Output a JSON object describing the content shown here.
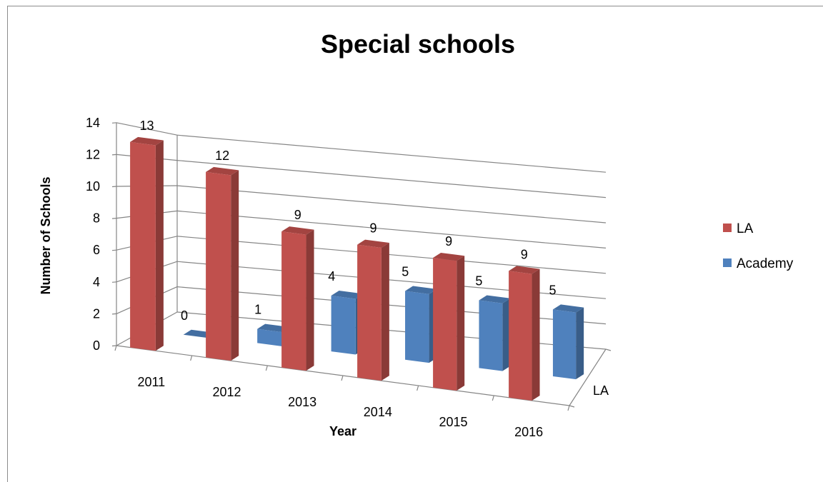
{
  "chart_data": {
    "type": "bar",
    "title": "Special schools",
    "xlabel": "Year",
    "ylabel": "Number of Schools",
    "depth_axis_label": "LA",
    "categories": [
      "2011",
      "2012",
      "2013",
      "2014",
      "2015",
      "2016"
    ],
    "ylim": [
      0,
      14
    ],
    "y_ticks": [
      0,
      2,
      4,
      6,
      8,
      10,
      12,
      14
    ],
    "grid": true,
    "legend_position": "right",
    "series": [
      {
        "name": "LA",
        "color": "#c0504d",
        "values": [
          13,
          12,
          9,
          9,
          9,
          9
        ]
      },
      {
        "name": "Academy",
        "color": "#4f81bd",
        "values": [
          0,
          1,
          4,
          5,
          5,
          5
        ]
      }
    ]
  }
}
